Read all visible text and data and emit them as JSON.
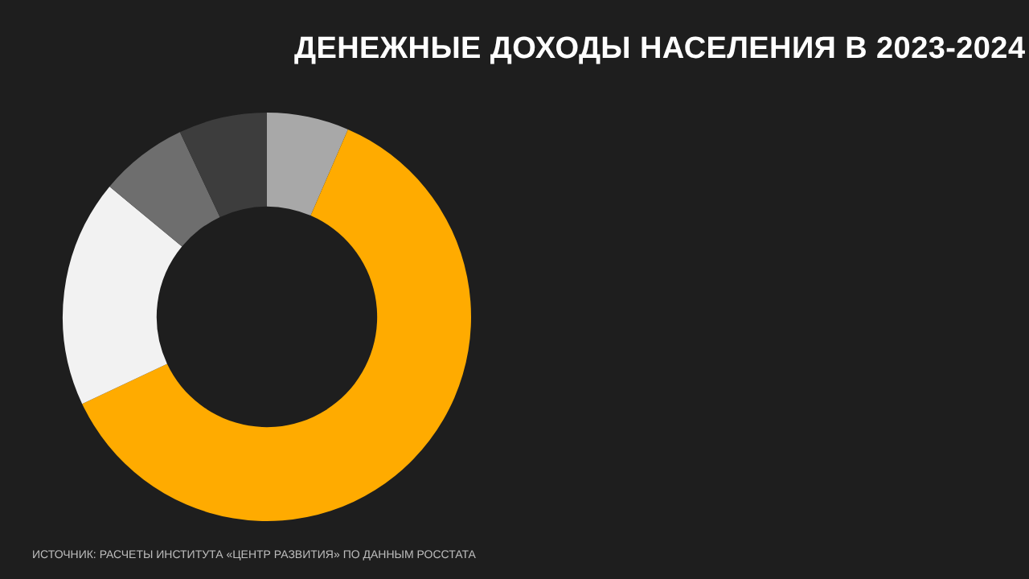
{
  "chart_data": {
    "type": "donut",
    "title": "ДЕНЕЖНЫЕ ДОХОДЫ НАСЕЛЕНИЯ В 2023-2024",
    "categories": [
      null,
      null,
      null,
      null,
      null
    ],
    "values": [
      6.5,
      61.5,
      18,
      7,
      7
    ],
    "colors": [
      "#a8a8a8",
      "#ffab00",
      "#f2f2f2",
      "#6e6e6e",
      "#3d3d3d"
    ],
    "legend": false,
    "annotations": [
      "ИСТОЧНИК: РАСЧЕТЫ ИНСТИТУТА «ЦЕНТР РАЗВИТИЯ» ПО ДАННЫМ РОССТАТА"
    ]
  }
}
